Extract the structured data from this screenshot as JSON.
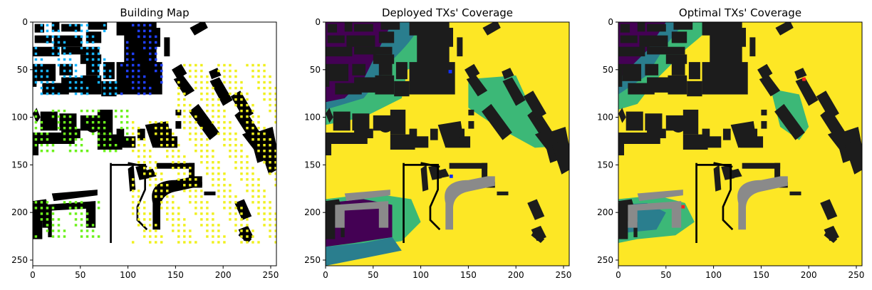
{
  "chart_data": [
    {
      "type": "heatmap",
      "title": "Building Map",
      "xlim": [
        0,
        256
      ],
      "ylim": [
        256,
        0
      ],
      "x_ticks": [
        "0",
        "50",
        "100",
        "150",
        "200",
        "250"
      ],
      "y_ticks": [
        "0",
        "50",
        "100",
        "150",
        "200",
        "250"
      ],
      "background_color": "#ffffff",
      "building_color": "#000000",
      "rx_colors": [
        "#1f3fff",
        "#16b4ff",
        "#6cf21b",
        "#f0f01e"
      ]
    },
    {
      "type": "heatmap",
      "title": "Deployed TXs' Coverage",
      "xlim": [
        0,
        256
      ],
      "ylim": [
        256,
        0
      ],
      "x_ticks": [
        "0",
        "50",
        "100",
        "150",
        "200",
        "250"
      ],
      "y_ticks": [
        "0",
        "50",
        "100",
        "150",
        "200",
        "250"
      ],
      "tx_positions": [
        [
          131,
          52
        ],
        [
          132,
          162
        ]
      ],
      "tx_color": "#1030ff",
      "colormap": [
        "#440154",
        "#2a7e8e",
        "#3cb877",
        "#5ec962",
        "#fde725"
      ],
      "building_color": "#1c1c1c"
    },
    {
      "type": "heatmap",
      "title": "Optimal TXs' Coverage",
      "xlim": [
        0,
        256
      ],
      "ylim": [
        256,
        0
      ],
      "x_ticks": [
        "0",
        "50",
        "100",
        "150",
        "200",
        "250"
      ],
      "y_ticks": [
        "0",
        "50",
        "100",
        "150",
        "200",
        "250"
      ],
      "tx_positions": [
        [
          195,
          60
        ],
        [
          68,
          194
        ]
      ],
      "tx_color": "#ff2020",
      "colormap": [
        "#440154",
        "#2a7e8e",
        "#3cb877",
        "#5ec962",
        "#fde725"
      ],
      "building_color": "#1c1c1c"
    }
  ]
}
